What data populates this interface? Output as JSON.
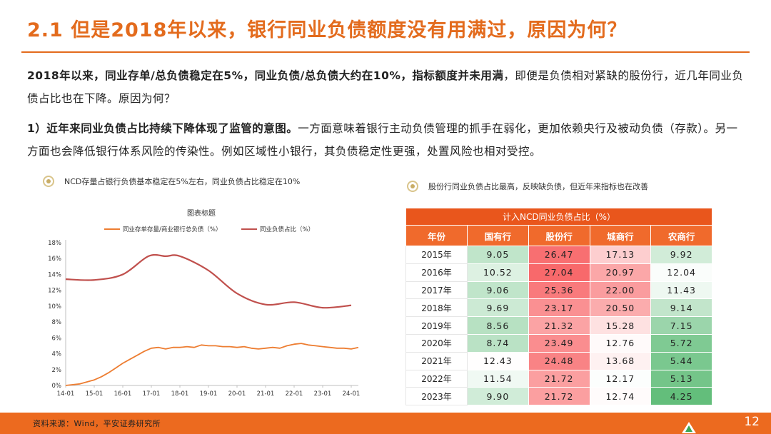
{
  "title": "2.1 但是2018年以来，银行同业负债额度没有用满过，原因为何？",
  "para1": {
    "bold": "2018年以来，同业存单/总负债稳定在5%，同业负债/总负债大约在10%，指标额度并未用满",
    "rest": "，即便是负债相对紧缺的股份行，近几年同业负债占比也在下降。原因为何？"
  },
  "para2": {
    "bold": "1）近年来同业负债占比持续下降体现了监管的意图。",
    "rest": "一方面意味着银行主动负债管理的抓手在弱化，更加依赖央行及被动负债（存款）。另一方面也会降低银行体系风险的传染性。例如区域性小银行，其负债稳定性更强，处置风险也相对受控。"
  },
  "left_caption": "NCD存量占银行负债基本稳定在5%左右，同业负债占比稳定在10%",
  "right_caption": "股份行同业负债占比最高，反映缺负债，但近年来指标也在改善",
  "chart_data": {
    "type": "line",
    "title": "图表标题",
    "xlabel": "",
    "ylabel": "",
    "x_ticks": [
      "14-01",
      "15-01",
      "16-01",
      "17-01",
      "18-01",
      "19-01",
      "20-01",
      "21-01",
      "22-01",
      "23-01",
      "24-01"
    ],
    "y_ticks": [
      "0%",
      "2%",
      "4%",
      "6%",
      "8%",
      "10%",
      "12%",
      "14%",
      "16%",
      "18%"
    ],
    "ylim": [
      0,
      18
    ],
    "xlim": [
      2014.0,
      2024.25
    ],
    "legend_position": "top",
    "grid": false,
    "series": [
      {
        "name": "同业存单存量/商业银行总负债（%）",
        "color": "#ed7d31",
        "x": [
          2014.0,
          2014.25,
          2014.5,
          2014.75,
          2015.0,
          2015.25,
          2015.5,
          2015.75,
          2016.0,
          2016.25,
          2016.5,
          2016.75,
          2017.0,
          2017.25,
          2017.5,
          2017.75,
          2018.0,
          2018.25,
          2018.5,
          2018.75,
          2019.0,
          2019.25,
          2019.5,
          2019.75,
          2020.0,
          2020.25,
          2020.5,
          2020.75,
          2021.0,
          2021.25,
          2021.5,
          2021.75,
          2022.0,
          2022.25,
          2022.5,
          2022.75,
          2023.0,
          2023.25,
          2023.5,
          2023.75,
          2024.0,
          2024.25
        ],
        "values": [
          0.0,
          0.1,
          0.2,
          0.45,
          0.7,
          1.1,
          1.6,
          2.2,
          2.8,
          3.3,
          3.8,
          4.3,
          4.7,
          4.8,
          4.6,
          4.8,
          4.8,
          4.9,
          4.8,
          5.1,
          5.0,
          5.0,
          4.9,
          4.9,
          4.8,
          4.9,
          4.7,
          4.6,
          4.7,
          4.8,
          4.7,
          5.0,
          5.2,
          5.3,
          5.1,
          5.0,
          4.9,
          4.8,
          4.7,
          4.7,
          4.6,
          4.8
        ]
      },
      {
        "name": "同业负债占比（%）",
        "color": "#c0504d",
        "x": [
          2014.0,
          2015.0,
          2016.0,
          2016.9,
          2017.5,
          2018.0,
          2019.0,
          2020.0,
          2021.0,
          2022.0,
          2023.0,
          2024.0
        ],
        "values": [
          13.4,
          13.3,
          14.0,
          16.3,
          16.3,
          16.3,
          14.5,
          11.6,
          10.2,
          10.5,
          9.8,
          10.1
        ]
      }
    ]
  },
  "table": {
    "title": "计入NCD同业负债占比（%）",
    "headers": [
      "年份",
      "国有行",
      "股份行",
      "城商行",
      "农商行"
    ],
    "rows": [
      {
        "year": "2015年",
        "values": [
          "9.05",
          "26.47",
          "17.13",
          "9.92"
        ]
      },
      {
        "year": "2016年",
        "values": [
          "10.52",
          "27.04",
          "20.97",
          "12.04"
        ]
      },
      {
        "year": "2017年",
        "values": [
          "9.06",
          "25.36",
          "22.00",
          "11.43"
        ]
      },
      {
        "year": "2018年",
        "values": [
          "9.69",
          "23.17",
          "20.50",
          "9.14"
        ]
      },
      {
        "year": "2019年",
        "values": [
          "8.56",
          "21.32",
          "15.28",
          "7.15"
        ]
      },
      {
        "year": "2020年",
        "values": [
          "8.74",
          "23.49",
          "12.76",
          "5.72"
        ]
      },
      {
        "year": "2021年",
        "values": [
          "12.43",
          "24.48",
          "13.68",
          "5.44"
        ]
      },
      {
        "year": "2022年",
        "values": [
          "11.54",
          "21.72",
          "12.17",
          "5.13"
        ]
      },
      {
        "year": "2023年",
        "values": [
          "9.90",
          "21.72",
          "12.74",
          "4.25"
        ]
      }
    ],
    "color_scale": {
      "low": "#63be7b",
      "mid": "#ffffff",
      "high": "#f8696b"
    }
  },
  "footer": {
    "source": "资料来源：Wind，平安证券研究所",
    "page": "12"
  }
}
